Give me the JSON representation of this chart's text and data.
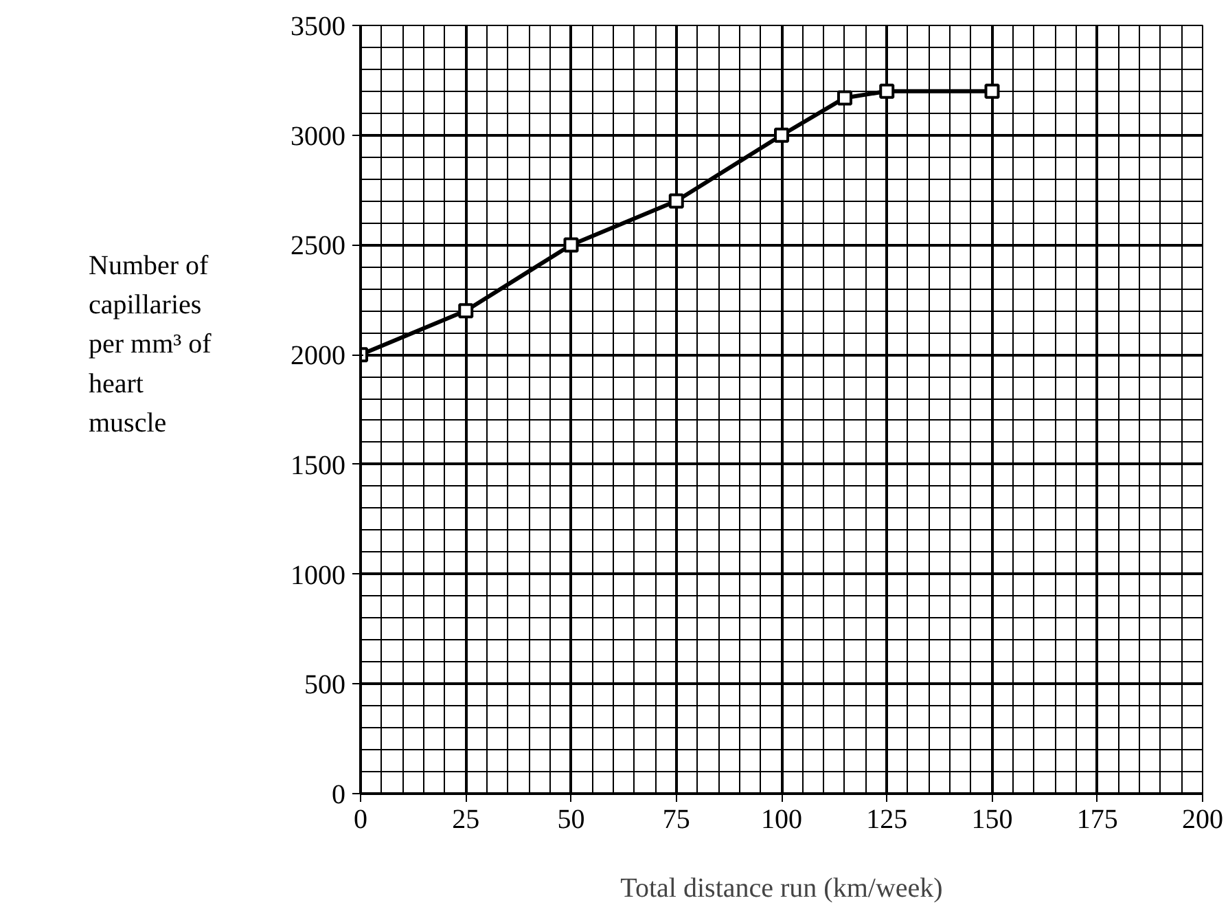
{
  "chart_data": {
    "type": "line",
    "xlabel": "Total distance run (km/week)",
    "ylabel": "Number of\ncapillaries\nper mm³ of\nheart\nmuscle",
    "x": [
      0,
      25,
      50,
      75,
      100,
      115,
      125,
      150
    ],
    "series": [
      {
        "color": "#000000",
        "values": [
          2000,
          2200,
          2500,
          2700,
          3000,
          3170,
          3200,
          3200
        ]
      }
    ],
    "xlim": [
      0,
      200
    ],
    "ylim": [
      0,
      3500
    ],
    "xticks": [
      0,
      25,
      50,
      75,
      100,
      125,
      150,
      175,
      200
    ],
    "yticks": [
      0,
      500,
      1000,
      1500,
      2000,
      2500,
      3000,
      3500
    ],
    "grid": true,
    "marker": "square",
    "line_style": "solid"
  }
}
